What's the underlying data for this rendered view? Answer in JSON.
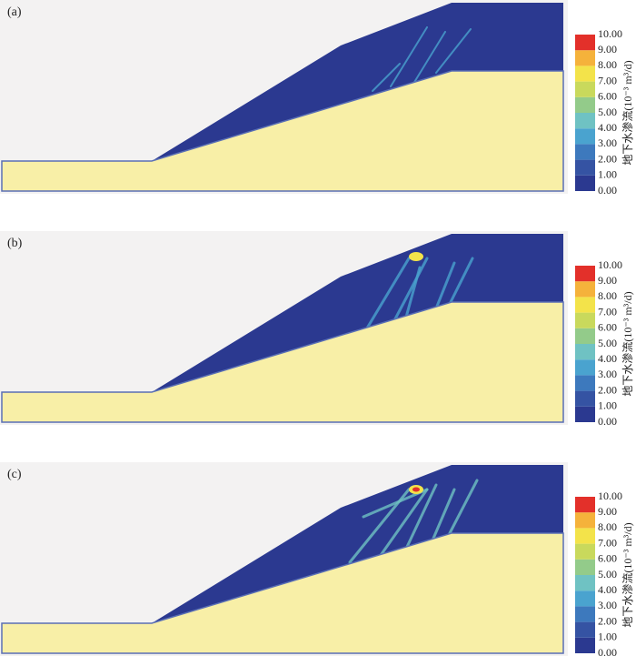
{
  "panels": [
    {
      "label": "(a)"
    },
    {
      "label": "(b)"
    },
    {
      "label": "(c)"
    }
  ],
  "colorbar": {
    "title": "地下水渗流(10⁻³ m³/d)",
    "ticks": [
      "0.00",
      "1.00",
      "2.00",
      "3.00",
      "4.00",
      "5.00",
      "6.00",
      "7.00",
      "8.00",
      "9.00",
      "10.00"
    ],
    "colors": [
      "#2b3990",
      "#3553a3",
      "#3d79bd",
      "#4aa3cf",
      "#6fc2c3",
      "#93cb8a",
      "#c9d95c",
      "#f3e34a",
      "#f5b23b",
      "#ef7b2d",
      "#e3302a"
    ]
  }
}
